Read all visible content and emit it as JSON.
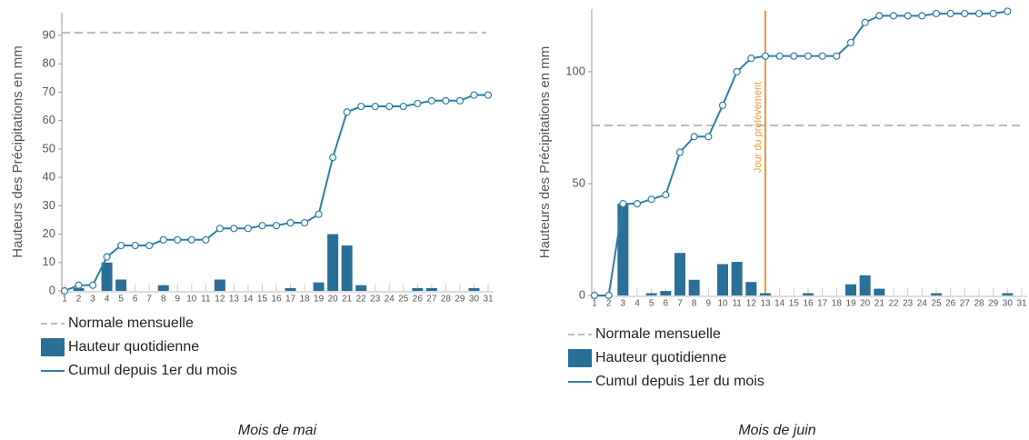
{
  "chart_data": [
    {
      "type": "combo",
      "caption": "Mois de mai",
      "y_label": "Hauteurs des Précipitations en mm",
      "categories": [
        "1",
        "2",
        "3",
        "4",
        "5",
        "6",
        "7",
        "8",
        "9",
        "10",
        "11",
        "12",
        "13",
        "14",
        "15",
        "16",
        "17",
        "18",
        "19",
        "20",
        "21",
        "22",
        "23",
        "24",
        "25",
        "26",
        "27",
        "28",
        "29",
        "30",
        "31"
      ],
      "reference": {
        "name": "Normale mensuelle",
        "value": 91,
        "color": "#bbbbbb"
      },
      "series": [
        {
          "name": "Hauteur quotidienne",
          "kind": "bar",
          "color": "#2a6f97",
          "values": [
            0,
            1,
            0,
            10,
            4,
            0,
            0,
            2,
            0,
            0,
            0,
            4,
            0,
            0,
            0,
            0,
            1,
            0,
            3,
            20,
            16,
            2,
            0,
            0,
            0,
            1,
            1,
            0,
            0,
            1,
            0
          ]
        },
        {
          "name": "Cumul depuis 1er du mois",
          "kind": "line",
          "color": "#2f7ea6",
          "values": [
            0,
            2,
            2,
            12,
            16,
            16,
            16,
            18,
            18,
            18,
            18,
            22,
            22,
            22,
            23,
            23,
            24,
            24,
            27,
            47,
            63,
            65,
            65,
            65,
            65,
            66,
            67,
            67,
            67,
            69,
            69
          ]
        }
      ],
      "ylim": [
        0,
        98
      ],
      "yticks": [
        0,
        10,
        20,
        30,
        40,
        50,
        60,
        70,
        80,
        90
      ]
    },
    {
      "type": "combo",
      "caption": "Mois de juin",
      "y_label": "Hauteurs des Précipitations en mm",
      "categories": [
        "1",
        "2",
        "3",
        "4",
        "5",
        "6",
        "7",
        "8",
        "9",
        "10",
        "11",
        "12",
        "13",
        "14",
        "15",
        "16",
        "17",
        "18",
        "19",
        "20",
        "21",
        "22",
        "23",
        "24",
        "25",
        "26",
        "27",
        "28",
        "29",
        "30",
        "31"
      ],
      "reference": {
        "name": "Normale mensuelle",
        "value": 76,
        "color": "#bbbbbb"
      },
      "annotation": {
        "text": "Jour du prélèvement",
        "x": "13",
        "color": "#f0963a"
      },
      "series": [
        {
          "name": "Hauteur quotidienne",
          "kind": "bar",
          "color": "#2a6f97",
          "values": [
            0,
            0,
            41,
            0,
            1,
            2,
            19,
            7,
            0,
            14,
            15,
            6,
            1,
            0,
            0,
            1,
            0,
            0,
            5,
            9,
            3,
            0,
            0,
            0,
            1,
            0,
            0,
            0,
            0,
            1,
            0
          ]
        },
        {
          "name": "Cumul depuis 1er du mois",
          "kind": "line",
          "color": "#2f7ea6",
          "values": [
            0,
            0,
            41,
            41,
            43,
            45,
            64,
            71,
            71,
            85,
            100,
            106,
            107,
            107,
            107,
            107,
            107,
            107,
            113,
            122,
            125,
            125,
            125,
            125,
            126,
            126,
            126,
            126,
            126,
            127,
            null
          ]
        }
      ],
      "ylim": [
        0,
        128
      ],
      "yticks": [
        0,
        50,
        100
      ]
    }
  ]
}
